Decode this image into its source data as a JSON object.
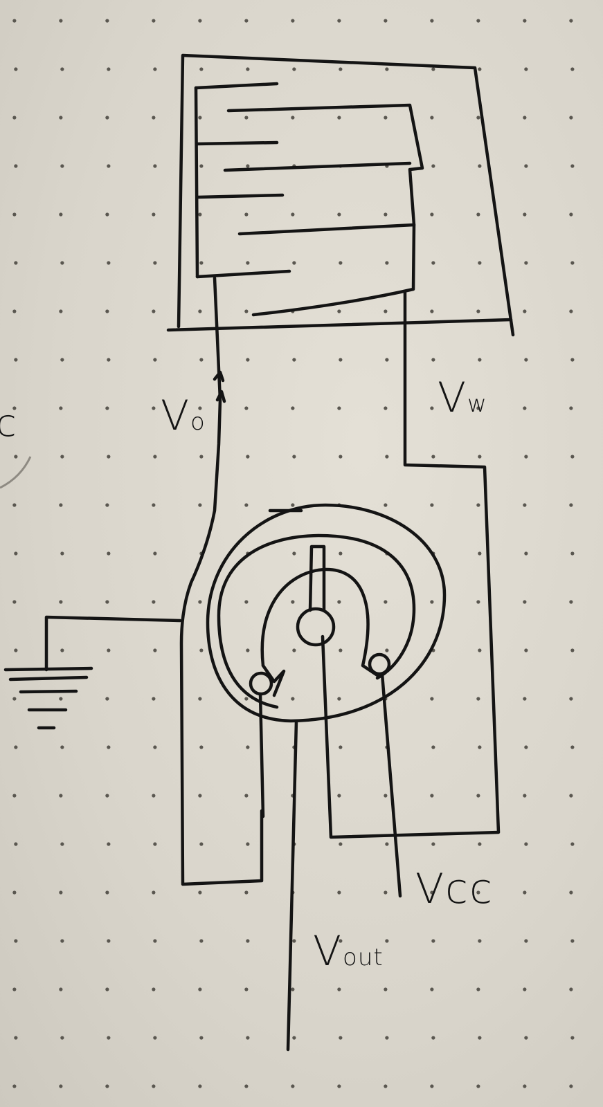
{
  "diagram": {
    "title": "hand-drawn sensor and potentiometer circuit",
    "labels": {
      "v0_main": "V",
      "v0_sub": "o",
      "vw_main": "V",
      "vw_sub": "w",
      "vcc": "Vcc",
      "vout_main": "V",
      "vout_sub": "out",
      "edge_fragment": "c"
    }
  }
}
